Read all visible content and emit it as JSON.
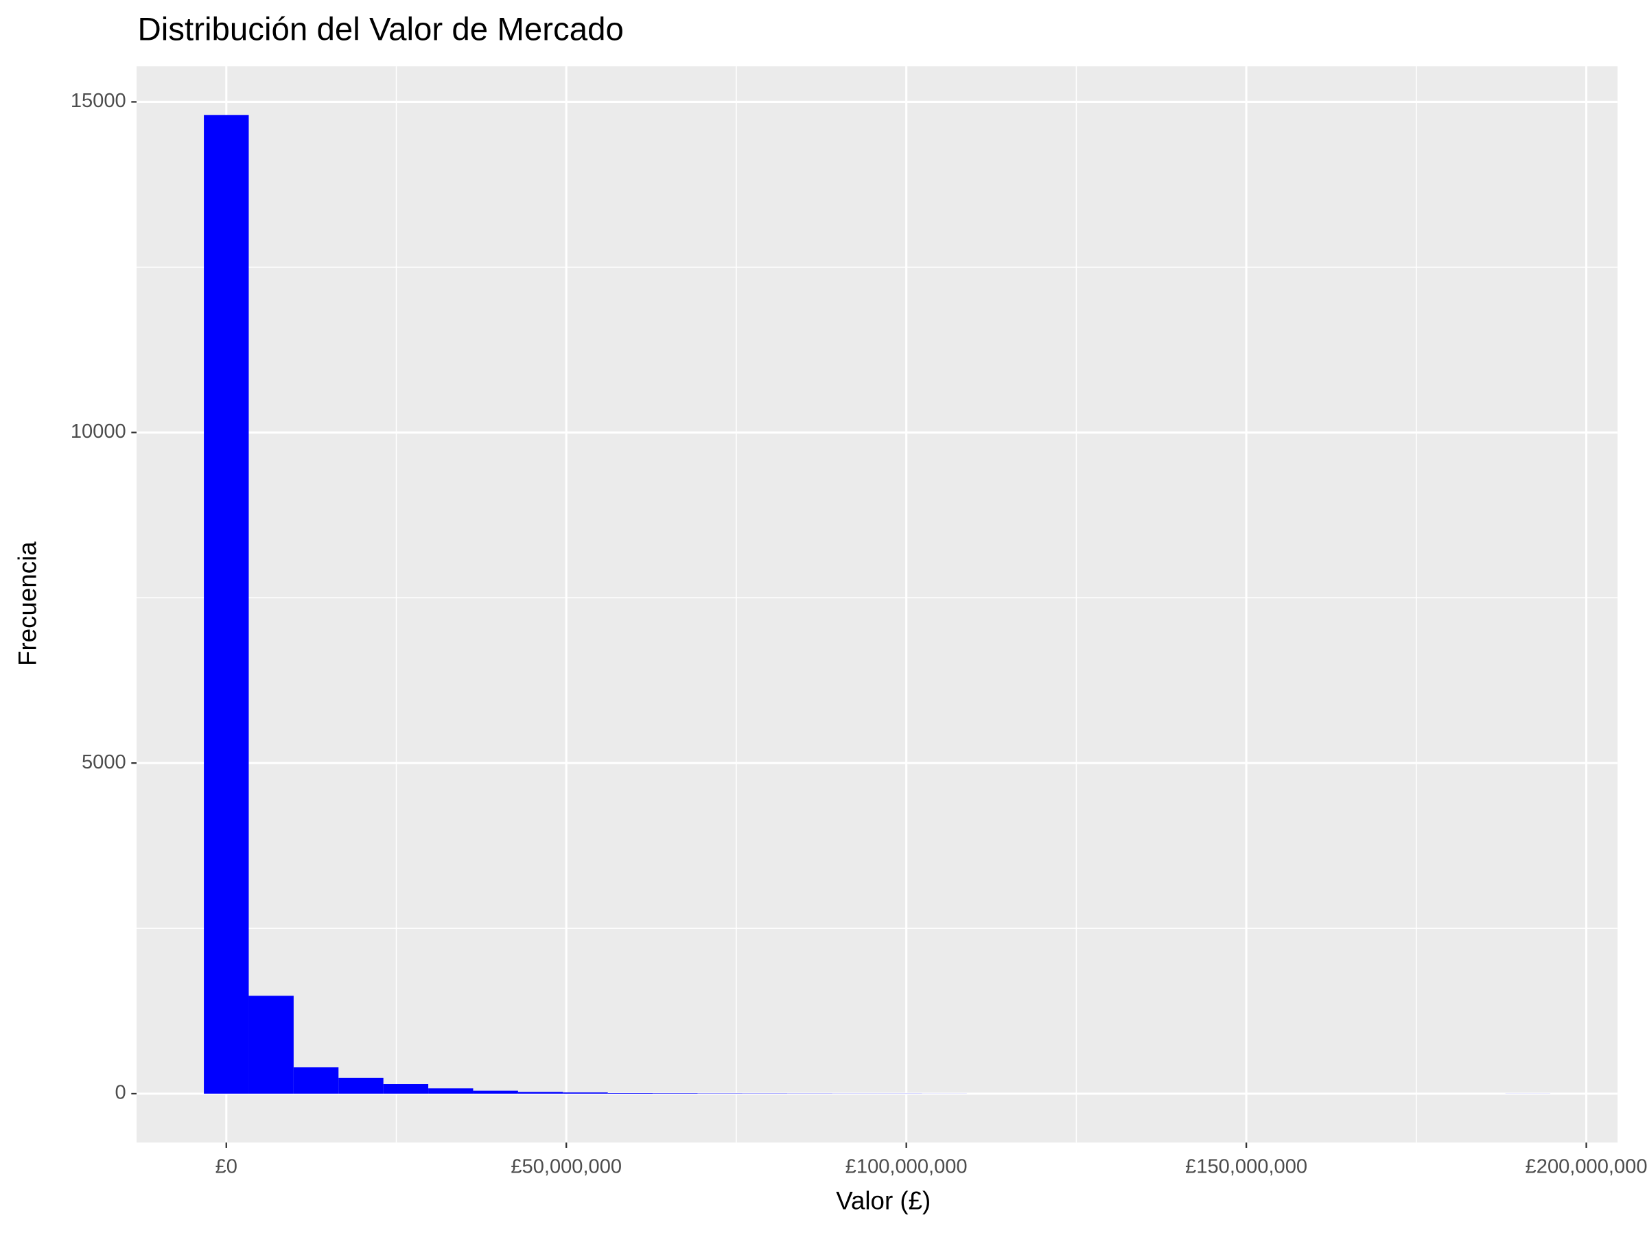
{
  "chart_data": {
    "type": "histogram",
    "title": "Distribución del Valor de Mercado",
    "x_label": "Valor (£)",
    "y_label": "Frecuencia",
    "color": "#0000ff",
    "bins": [
      -3300000,
      3300000,
      9900000,
      16500000,
      23100000,
      29700000,
      36300000,
      42900000,
      49500000,
      56100000,
      62700000,
      69300000,
      75900000,
      82500000,
      89100000,
      95700000,
      102300000,
      108900000,
      115500000,
      122100000,
      128700000,
      135300000,
      141900000,
      148500000,
      155100000,
      161700000,
      168300000,
      174900000,
      181500000,
      188100000,
      194700000
    ],
    "values": [
      14800,
      1480,
      400,
      240,
      145,
      80,
      45,
      25,
      18,
      10,
      8,
      5,
      4,
      3,
      2,
      2,
      1,
      0,
      0,
      0,
      0,
      0,
      0,
      0,
      0,
      0,
      0,
      0,
      0,
      1
    ],
    "xlim": [
      -13200000,
      204600000
    ],
    "ylim": [
      -740,
      15540
    ],
    "xticks": [
      {
        "value": 0,
        "label": "£0"
      },
      {
        "value": 50000000,
        "label": "£50,000,000"
      },
      {
        "value": 100000000,
        "label": "£100,000,000"
      },
      {
        "value": 150000000,
        "label": "£150,000,000"
      },
      {
        "value": 200000000,
        "label": "£200,000,000"
      }
    ],
    "yticks": [
      0,
      5000,
      10000,
      15000
    ],
    "grid": true
  }
}
